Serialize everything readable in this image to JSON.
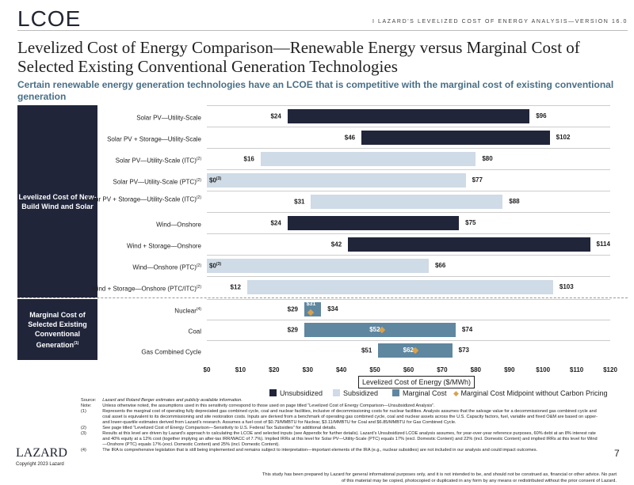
{
  "header": {
    "logo": "LCOE",
    "title": "I   LAZARD'S LEVELIZED COST OF ENERGY ANALYSIS—VERSION 16.0"
  },
  "title": "Levelized Cost of Energy Comparison—Renewable Energy versus Marginal Cost of Selected Existing Conventional Generation Technologies",
  "subtitle": "Certain renewable energy generation technologies have an LCOE that is competitive with the marginal cost of existing conventional generation",
  "groups": [
    {
      "label": "Levelized Cost of New-Build Wind and Solar",
      "sup": ""
    },
    {
      "label": "Marginal Cost of Selected Existing Conventional Generation",
      "sup": "(1)"
    }
  ],
  "colors": {
    "unsubsidized": "#20253a",
    "subsidized": "#cfdbe6",
    "marginal": "#5f87a0",
    "midpoint": "#d9a24e"
  },
  "chart_data": {
    "type": "bar",
    "orientation": "horizontal floating range",
    "xlabel": "Levelized Cost of Energy ($/MWh)",
    "xlim": [
      0,
      120
    ],
    "xticks": [
      "$0",
      "$10",
      "$20",
      "$30",
      "$40",
      "$50",
      "$60",
      "$70",
      "$80",
      "$90",
      "$100",
      "$110",
      "$120"
    ],
    "legend": [
      "Unsubsidized",
      "Subsidized",
      "Marginal Cost",
      "Marginal Cost Midpoint without Carbon Pricing"
    ],
    "rows": [
      {
        "label": "Solar PV—Utility-Scale",
        "sup": "",
        "type": "unsubsidized",
        "low": 24,
        "high": 96,
        "low_label": "$24",
        "high_label": "$96",
        "low_sup": ""
      },
      {
        "label": "Solar PV + Storage—Utility-Scale",
        "sup": "",
        "type": "unsubsidized",
        "low": 46,
        "high": 102,
        "low_label": "$46",
        "high_label": "$102",
        "low_sup": ""
      },
      {
        "label": "Solar PV—Utility-Scale (ITC)",
        "sup": "(2)",
        "type": "subsidized",
        "low": 16,
        "high": 80,
        "low_label": "$16",
        "high_label": "$80",
        "low_sup": ""
      },
      {
        "label": "Solar PV—Utility-Scale (PTC)",
        "sup": "(2)",
        "type": "subsidized",
        "low": 0,
        "high": 77,
        "low_label": "$0",
        "high_label": "$77",
        "low_sup": "(3)"
      },
      {
        "label": "Solar PV + Storage—Utility-Scale (ITC)",
        "sup": "(2)",
        "type": "subsidized",
        "low": 31,
        "high": 88,
        "low_label": "$31",
        "high_label": "$88",
        "low_sup": ""
      },
      {
        "label": "Wind—Onshore",
        "sup": "",
        "type": "unsubsidized",
        "low": 24,
        "high": 75,
        "low_label": "$24",
        "high_label": "$75",
        "low_sup": ""
      },
      {
        "label": "Wind + Storage—Onshore",
        "sup": "",
        "type": "unsubsidized",
        "low": 42,
        "high": 114,
        "low_label": "$42",
        "high_label": "$114",
        "low_sup": ""
      },
      {
        "label": "Wind—Onshore (PTC)",
        "sup": "(2)",
        "type": "subsidized",
        "low": 0,
        "high": 66,
        "low_label": "$0",
        "high_label": "$66",
        "low_sup": "(3)"
      },
      {
        "label": "Wind + Storage—Onshore (PTC/ITC)",
        "sup": "(2)",
        "type": "subsidized",
        "low": 12,
        "high": 103,
        "low_label": "$12",
        "high_label": "$103",
        "low_sup": ""
      },
      {
        "label": "Nuclear",
        "sup": "(4)",
        "type": "marginal",
        "low": 29,
        "high": 34,
        "mid": 31,
        "low_label": "$29",
        "high_label": "$34",
        "mid_label": "$31",
        "low_sup": ""
      },
      {
        "label": "Coal",
        "sup": "",
        "type": "marginal",
        "low": 29,
        "high": 74,
        "mid": 52,
        "low_label": "$29",
        "high_label": "$74",
        "mid_label": "$52",
        "low_sup": ""
      },
      {
        "label": "Gas Combined Cycle",
        "sup": "",
        "type": "marginal",
        "low": 51,
        "high": 73,
        "mid": 62,
        "low_label": "$51",
        "high_label": "$73",
        "mid_label": "$62",
        "low_sup": ""
      }
    ]
  },
  "notes": [
    [
      "Source:",
      "Lazard and Roland Berger estimates and publicly available information."
    ],
    [
      "Note:",
      "Unless otherwise noted, the assumptions used in this sensitivity correspond to those used on page titled “Levelized Cost of Energy Comparison—Unsubsidized Analysis”."
    ],
    [
      "(1)",
      "Represents the marginal cost of operating fully depreciated gas combined cycle, coal and nuclear facilities, inclusive of decommissioning costs for nuclear facilities. Analysis assumes that the salvage value for a decommissioned gas combined cycle and coal asset is equivalent to its decommissioning and site restoration costs. Inputs are derived from a benchmark of operating gas combined cycle, coal and nuclear assets across the U.S. Capacity factors, fuel, variable and fixed O&M are based on upper- and lower-quartile estimates derived from Lazard’s research. Assumes a fuel cost of $0.79/MMBTU for Nuclear, $3.11/MMBTU for Coal and $6.85/MMBTU for Gas Combined Cycle."
    ],
    [
      "(2)",
      "See page titled “Levelized Cost of Energy Comparison—Sensitivity to U.S. Federal Tax Subsidies” for additional details."
    ],
    [
      "(3)",
      "Results at this level are driven by Lazard’s approach to calculating the LCOE and selected inputs (see Appendix for further details). Lazard’s Unsubsidized LCOE analysis assumes, for year-over-year reference purposes, 60% debt at an 8% interest rate and 40% equity at a 12% cost (together implying an after-tax IRR/WACC of 7.7%). Implied IRRs at this level for Solar PV—Utility-Scale (PTC) equals 17% (excl. Domestic Content) and 22% (incl. Domestic Content) and implied IRRs at this level for Wind—Onshore (PTC) equals 17% (excl. Domestic Content) and 25% (incl. Domestic Content)."
    ],
    [
      "(4)",
      "The IRA is comprehensive legislation that is still being implemented and remains subject to interpretation—important elements of the IRA (e.g., nuclear subsidies) are not included in our analysis and could impact outcomes."
    ]
  ],
  "footer": {
    "brand": "LAZARD",
    "copyright": "Copyright 2023 Lazard",
    "page": "7",
    "disclaimer": "This study has been prepared by Lazard for general informational purposes only, and it is not intended to be, and should not be construed as, financial or other advice. No part of this material may be copied, photocopied or duplicated in any form by any means or redistributed without the prior consent of Lazard."
  }
}
